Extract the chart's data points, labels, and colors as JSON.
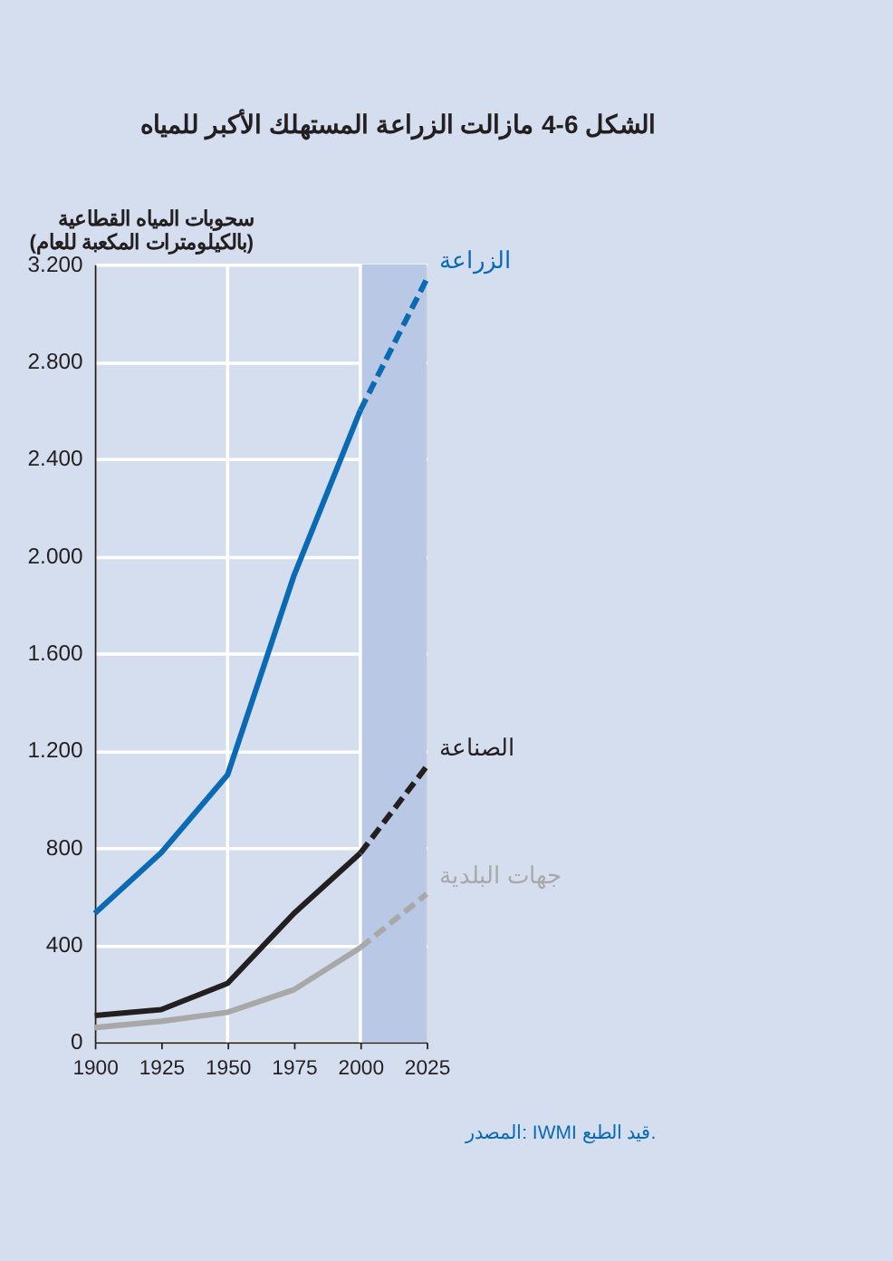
{
  "chart_data": {
    "type": "line",
    "title": "الشكل 6-4 مازالت الزراعة المستهلك الأكبر للمياه",
    "ylabel": "سحوبات المياه القطاعية\n(بالكيلومترات المكعبة للعام)",
    "x": [
      1900,
      1925,
      1950,
      1975,
      2000,
      2025
    ],
    "series": [
      {
        "color": "#0a6ab4",
        "line_style": "solid",
        "values": [
          530,
          780,
          1100,
          1920,
          2600,
          null
        ]
      },
      {
        "name": "الزراعة",
        "color": "#0a6ab4",
        "line_style": "dashed",
        "values": [
          null,
          null,
          null,
          null,
          2600,
          3140
        ]
      },
      {
        "color": "#231f20",
        "line_style": "solid",
        "values": [
          110,
          134,
          242,
          530,
          778,
          null
        ]
      },
      {
        "name": "الصناعة",
        "color": "#231f20",
        "line_style": "dashed",
        "values": [
          null,
          null,
          null,
          null,
          778,
          1135
        ]
      },
      {
        "color": "#a8a8a8",
        "line_style": "solid",
        "values": [
          60,
          86,
          123,
          216,
          389,
          null
        ]
      },
      {
        "name": "جهات البلدية",
        "color": "#a8a8a8",
        "line_style": "dashed",
        "values": [
          null,
          null,
          null,
          null,
          389,
          610
        ]
      }
    ],
    "xlim": [
      1900,
      2025
    ],
    "xticks": [
      1900,
      1925,
      1950,
      1975,
      2000,
      2025
    ],
    "ylim": [
      0,
      3200
    ],
    "yticks": [
      0,
      400,
      800,
      {
        "value": 1200,
        "label": "1.200"
      },
      {
        "value": 1600,
        "label": "1.600"
      },
      {
        "value": 2000,
        "label": "2.000"
      },
      {
        "value": 2400,
        "label": "2.400"
      },
      {
        "value": 2800,
        "label": "2.800"
      },
      {
        "value": 3200,
        "label": "3.200"
      }
    ],
    "grid": "y",
    "bands": [
      {
        "axis": "x",
        "from": 2000,
        "to": 2025,
        "color": "#b9c8e4"
      }
    ],
    "ref_lines": [
      {
        "axis": "x",
        "value": 1950,
        "color": "#ffffff"
      },
      {
        "axis": "x",
        "value": 2000,
        "color": "#ffffff"
      }
    ],
    "annotations": [
      "المصدر: IWMI قيد الطبع."
    ]
  }
}
